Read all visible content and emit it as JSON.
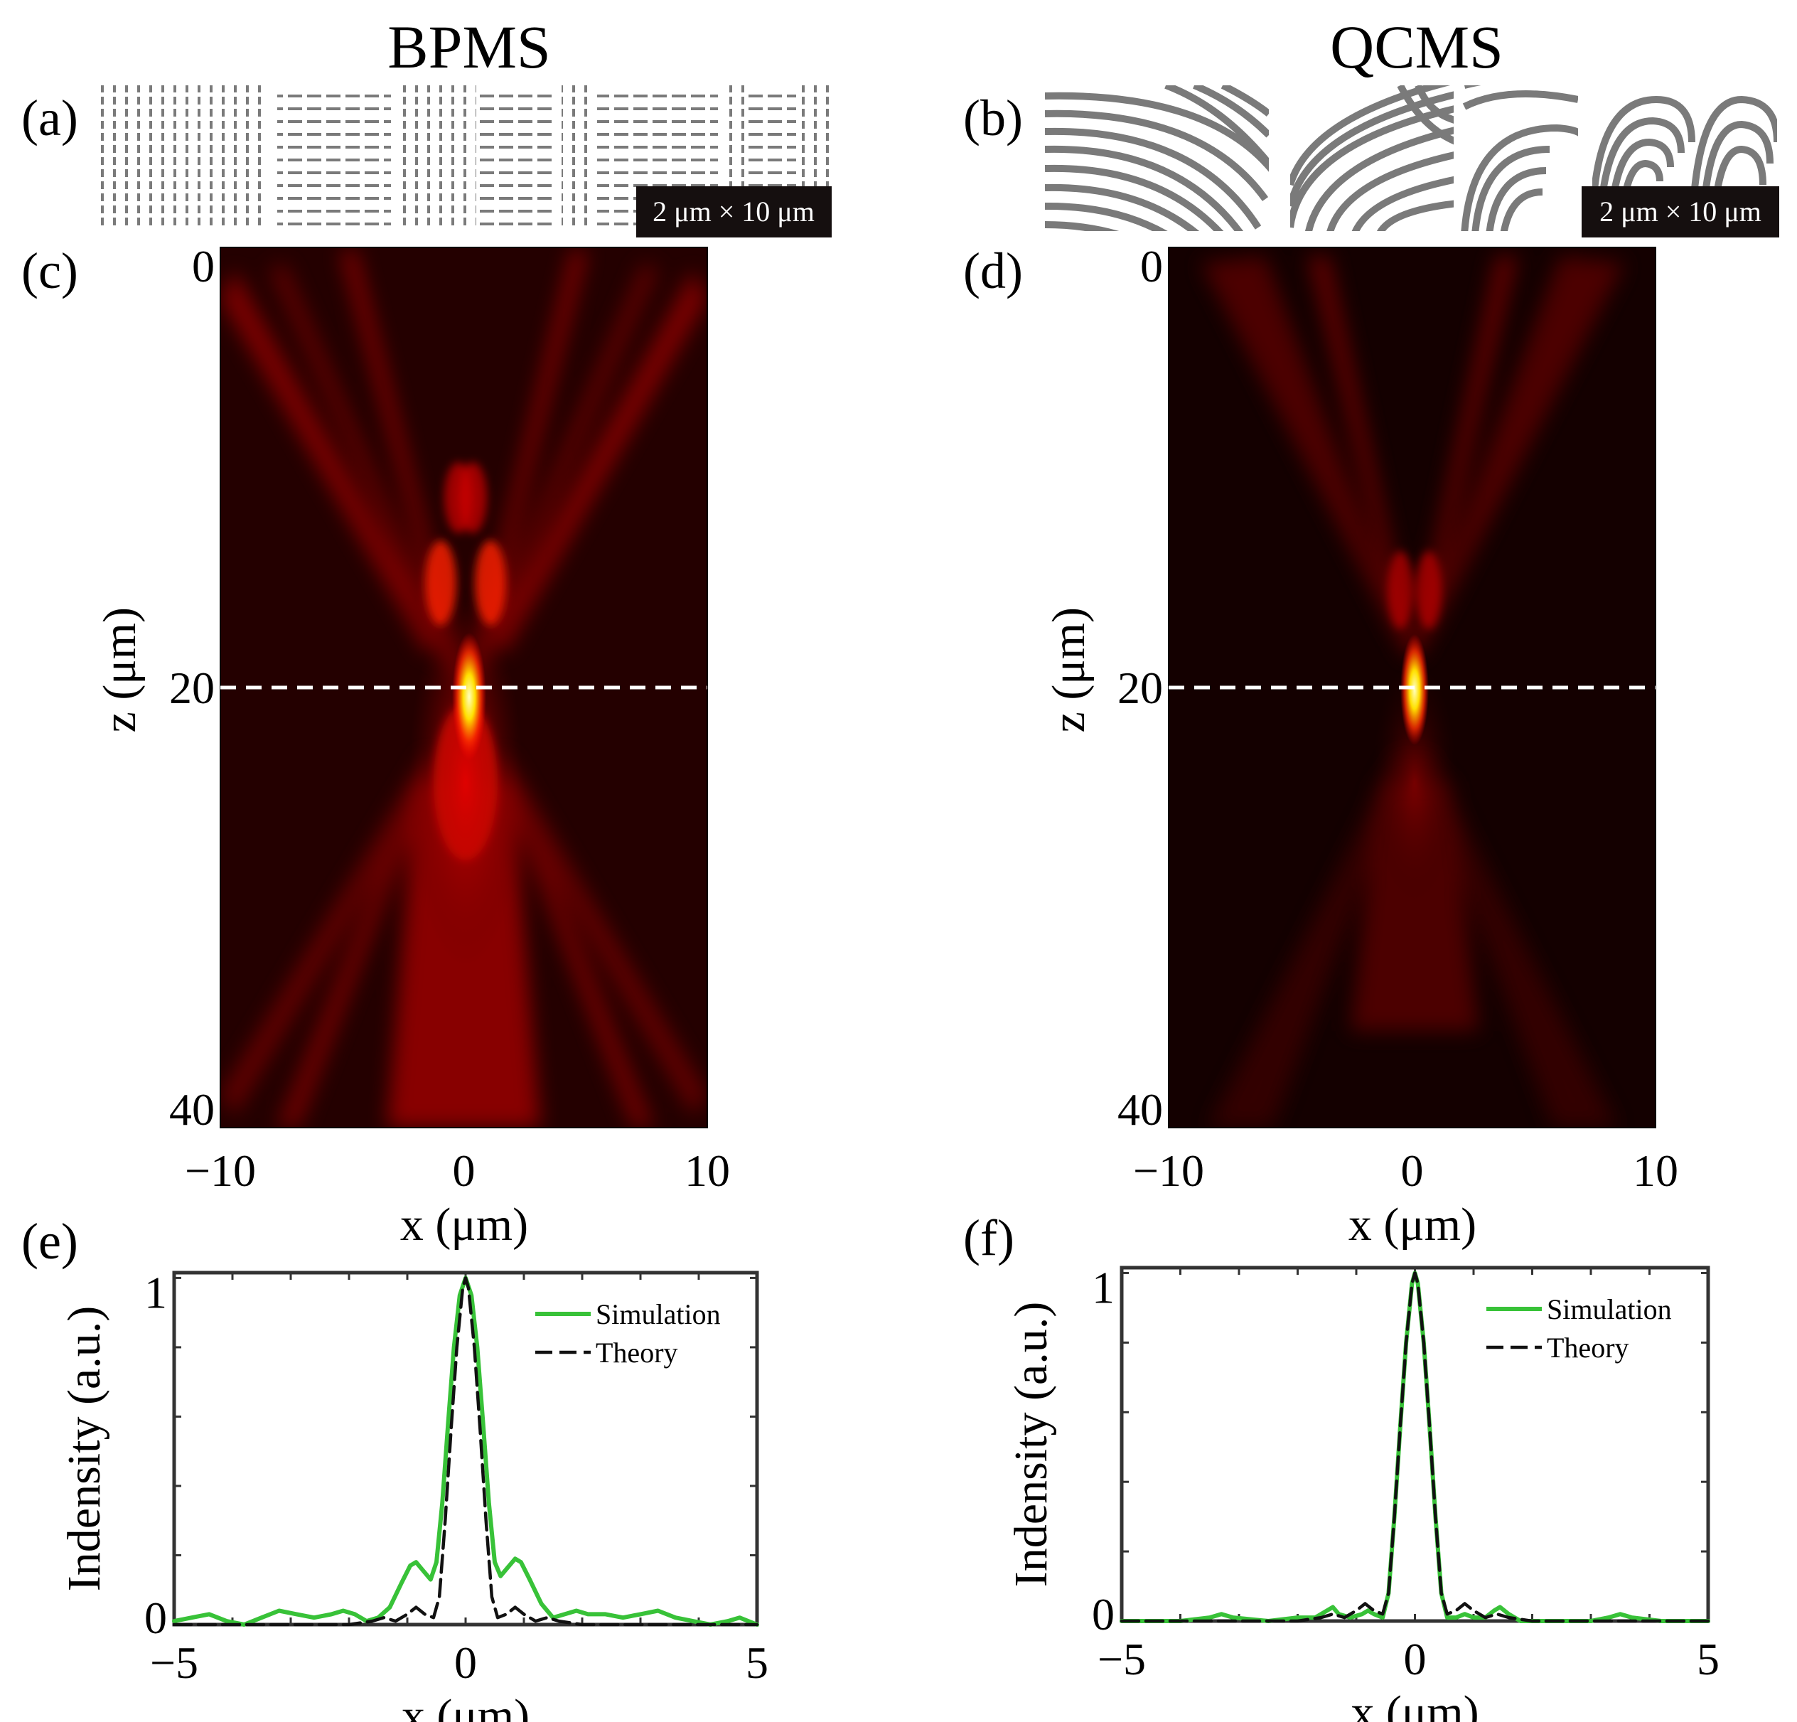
{
  "figure": {
    "columns": [
      {
        "title": "BPMS"
      },
      {
        "title": "QCMS"
      }
    ],
    "panel_labels": [
      "(a)",
      "(b)",
      "(c)",
      "(d)",
      "(e)",
      "(f)"
    ],
    "scale_bar_text": "2 μm × 10 μm",
    "colors": {
      "simulation": "#38c238",
      "theory": "#111111",
      "marker_line": "#ffffff",
      "map_dark": "#140000",
      "map_hot": "#ff0000",
      "map_peak": "#ffffa0",
      "structure": "#7a7a7a"
    }
  },
  "chart_data": [
    {
      "id": "c",
      "type": "heatmap",
      "title": "",
      "xlabel": "x (μm)",
      "ylabel": "z (μm)",
      "xlim": [
        -10,
        10
      ],
      "ylim": [
        0,
        40
      ],
      "xticks": [
        -10,
        0,
        10
      ],
      "xtick_labels": [
        "−10",
        "0",
        "10"
      ],
      "yticks": [
        0,
        20,
        40
      ],
      "ytick_labels": [
        "0",
        "20",
        "40"
      ],
      "focus_z": 20,
      "focus_line": "dashed white line at z = 20",
      "focus_center_x": 0.3,
      "colormap": "hot"
    },
    {
      "id": "d",
      "type": "heatmap",
      "title": "",
      "xlabel": "x (μm)",
      "ylabel": "z (μm)",
      "xlim": [
        -10,
        10
      ],
      "ylim": [
        0,
        40
      ],
      "xticks": [
        -10,
        0,
        10
      ],
      "xtick_labels": [
        "−10",
        "0",
        "10"
      ],
      "yticks": [
        0,
        20,
        40
      ],
      "ytick_labels": [
        "0",
        "20",
        "40"
      ],
      "focus_z": 20,
      "focus_line": "dashed white line at z = 20",
      "focus_center_x": 0.3,
      "colormap": "hot"
    },
    {
      "id": "e",
      "type": "line",
      "title": "",
      "xlabel": "x (μm)",
      "ylabel": "Indensity (a.u.)",
      "xlim": [
        -5,
        5
      ],
      "ylim": [
        0,
        1
      ],
      "xticks": [
        -5,
        0,
        5
      ],
      "xtick_labels": [
        "−5",
        "0",
        "5"
      ],
      "yticks": [
        0,
        1
      ],
      "ytick_labels": [
        "0",
        "1"
      ],
      "legend": [
        "Simulation",
        "Theory"
      ],
      "legend_position": "top-right",
      "series": [
        {
          "name": "Simulation",
          "style": "solid",
          "points": [
            [
              -5.0,
              0.01
            ],
            [
              -4.7,
              0.02
            ],
            [
              -4.4,
              0.03
            ],
            [
              -4.1,
              0.01
            ],
            [
              -3.8,
              0.0
            ],
            [
              -3.5,
              0.02
            ],
            [
              -3.2,
              0.04
            ],
            [
              -2.9,
              0.03
            ],
            [
              -2.6,
              0.02
            ],
            [
              -2.3,
              0.03
            ],
            [
              -2.1,
              0.04
            ],
            [
              -1.9,
              0.03
            ],
            [
              -1.7,
              0.01
            ],
            [
              -1.5,
              0.02
            ],
            [
              -1.3,
              0.05
            ],
            [
              -1.1,
              0.12
            ],
            [
              -0.95,
              0.17
            ],
            [
              -0.85,
              0.18
            ],
            [
              -0.75,
              0.16
            ],
            [
              -0.6,
              0.13
            ],
            [
              -0.5,
              0.18
            ],
            [
              -0.4,
              0.35
            ],
            [
              -0.3,
              0.58
            ],
            [
              -0.2,
              0.8
            ],
            [
              -0.1,
              0.95
            ],
            [
              0.0,
              1.0
            ],
            [
              0.1,
              0.95
            ],
            [
              0.2,
              0.8
            ],
            [
              0.3,
              0.58
            ],
            [
              0.4,
              0.35
            ],
            [
              0.5,
              0.18
            ],
            [
              0.6,
              0.14
            ],
            [
              0.75,
              0.17
            ],
            [
              0.85,
              0.19
            ],
            [
              0.95,
              0.18
            ],
            [
              1.1,
              0.13
            ],
            [
              1.3,
              0.06
            ],
            [
              1.5,
              0.02
            ],
            [
              1.7,
              0.03
            ],
            [
              1.9,
              0.04
            ],
            [
              2.1,
              0.03
            ],
            [
              2.4,
              0.03
            ],
            [
              2.7,
              0.02
            ],
            [
              3.0,
              0.03
            ],
            [
              3.3,
              0.04
            ],
            [
              3.6,
              0.02
            ],
            [
              3.9,
              0.01
            ],
            [
              4.2,
              0.0
            ],
            [
              4.5,
              0.01
            ],
            [
              4.7,
              0.02
            ],
            [
              5.0,
              0.0
            ]
          ]
        },
        {
          "name": "Theory",
          "style": "dashed",
          "points": [
            [
              -5.0,
              0.0
            ],
            [
              -2.0,
              0.0
            ],
            [
              -1.6,
              0.01
            ],
            [
              -1.4,
              0.02
            ],
            [
              -1.2,
              0.01
            ],
            [
              -1.0,
              0.03
            ],
            [
              -0.85,
              0.05
            ],
            [
              -0.7,
              0.03
            ],
            [
              -0.55,
              0.02
            ],
            [
              -0.45,
              0.08
            ],
            [
              -0.35,
              0.3
            ],
            [
              -0.25,
              0.56
            ],
            [
              -0.15,
              0.8
            ],
            [
              -0.05,
              0.97
            ],
            [
              0.0,
              1.0
            ],
            [
              0.05,
              0.97
            ],
            [
              0.15,
              0.8
            ],
            [
              0.25,
              0.56
            ],
            [
              0.35,
              0.3
            ],
            [
              0.45,
              0.08
            ],
            [
              0.55,
              0.02
            ],
            [
              0.7,
              0.03
            ],
            [
              0.85,
              0.05
            ],
            [
              1.0,
              0.03
            ],
            [
              1.2,
              0.01
            ],
            [
              1.4,
              0.02
            ],
            [
              1.6,
              0.01
            ],
            [
              2.0,
              0.0
            ],
            [
              5.0,
              0.0
            ]
          ]
        }
      ]
    },
    {
      "id": "f",
      "type": "line",
      "title": "",
      "xlabel": "x (μm)",
      "ylabel": "Indensity (a.u.)",
      "xlim": [
        -5,
        5
      ],
      "ylim": [
        0,
        1
      ],
      "xticks": [
        -5,
        0,
        5
      ],
      "xtick_labels": [
        "−5",
        "0",
        "5"
      ],
      "yticks": [
        0,
        1
      ],
      "ytick_labels": [
        "0",
        "1"
      ],
      "legend": [
        "Simulation",
        "Theory"
      ],
      "legend_position": "top-right",
      "series": [
        {
          "name": "Simulation",
          "style": "solid",
          "points": [
            [
              -5.0,
              0.0
            ],
            [
              -4.0,
              0.0
            ],
            [
              -3.5,
              0.01
            ],
            [
              -3.3,
              0.02
            ],
            [
              -3.1,
              0.01
            ],
            [
              -2.5,
              0.0
            ],
            [
              -2.0,
              0.01
            ],
            [
              -1.7,
              0.01
            ],
            [
              -1.5,
              0.03
            ],
            [
              -1.4,
              0.04
            ],
            [
              -1.3,
              0.02
            ],
            [
              -1.1,
              0.01
            ],
            [
              -0.9,
              0.02
            ],
            [
              -0.8,
              0.03
            ],
            [
              -0.7,
              0.02
            ],
            [
              -0.55,
              0.01
            ],
            [
              -0.45,
              0.08
            ],
            [
              -0.35,
              0.3
            ],
            [
              -0.25,
              0.56
            ],
            [
              -0.15,
              0.8
            ],
            [
              -0.05,
              0.97
            ],
            [
              0.0,
              1.0
            ],
            [
              0.05,
              0.97
            ],
            [
              0.15,
              0.8
            ],
            [
              0.25,
              0.56
            ],
            [
              0.35,
              0.3
            ],
            [
              0.45,
              0.08
            ],
            [
              0.55,
              0.01
            ],
            [
              0.7,
              0.01
            ],
            [
              0.85,
              0.02
            ],
            [
              1.0,
              0.01
            ],
            [
              1.2,
              0.01
            ],
            [
              1.35,
              0.03
            ],
            [
              1.45,
              0.04
            ],
            [
              1.6,
              0.02
            ],
            [
              1.8,
              0.0
            ],
            [
              2.5,
              0.0
            ],
            [
              3.0,
              0.0
            ],
            [
              3.3,
              0.01
            ],
            [
              3.5,
              0.02
            ],
            [
              3.7,
              0.01
            ],
            [
              4.2,
              0.0
            ],
            [
              5.0,
              0.0
            ]
          ]
        },
        {
          "name": "Theory",
          "style": "dashed",
          "points": [
            [
              -5.0,
              0.0
            ],
            [
              -2.0,
              0.0
            ],
            [
              -1.6,
              0.01
            ],
            [
              -1.4,
              0.02
            ],
            [
              -1.2,
              0.01
            ],
            [
              -1.0,
              0.03
            ],
            [
              -0.85,
              0.05
            ],
            [
              -0.7,
              0.03
            ],
            [
              -0.55,
              0.02
            ],
            [
              -0.45,
              0.08
            ],
            [
              -0.35,
              0.3
            ],
            [
              -0.25,
              0.56
            ],
            [
              -0.15,
              0.8
            ],
            [
              -0.05,
              0.97
            ],
            [
              0.0,
              1.0
            ],
            [
              0.05,
              0.97
            ],
            [
              0.15,
              0.8
            ],
            [
              0.25,
              0.56
            ],
            [
              0.35,
              0.3
            ],
            [
              0.45,
              0.08
            ],
            [
              0.55,
              0.02
            ],
            [
              0.7,
              0.03
            ],
            [
              0.85,
              0.05
            ],
            [
              1.0,
              0.03
            ],
            [
              1.2,
              0.01
            ],
            [
              1.4,
              0.02
            ],
            [
              1.6,
              0.01
            ],
            [
              2.0,
              0.0
            ],
            [
              5.0,
              0.0
            ]
          ]
        }
      ]
    }
  ]
}
